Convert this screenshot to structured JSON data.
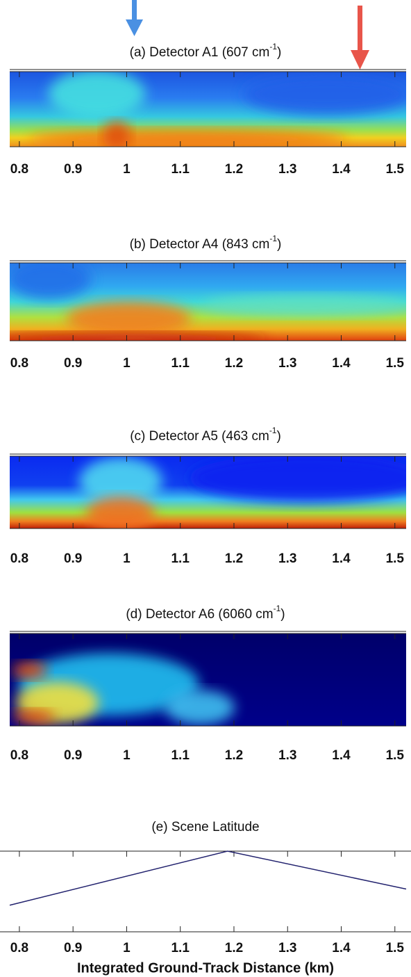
{
  "chart_data": [
    {
      "type": "heatmap",
      "title": "(a) Detector A1 (607 cm",
      "title_superscript": "-1",
      "title_suffix": ")",
      "xlim": [
        0.782,
        1.521
      ],
      "xticks": [
        0.8,
        0.9,
        1,
        1.1,
        1.2,
        1.3,
        1.4,
        1.5
      ]
    },
    {
      "type": "heatmap",
      "title": "(b) Detector A4 (843 cm",
      "title_superscript": "-1",
      "title_suffix": ")",
      "xlim": [
        0.782,
        1.521
      ],
      "xticks": [
        0.8,
        0.9,
        1,
        1.1,
        1.2,
        1.3,
        1.4,
        1.5
      ]
    },
    {
      "type": "heatmap",
      "title": "(c) Detector A5 (463 cm",
      "title_superscript": "-1",
      "title_suffix": ")",
      "xlim": [
        0.782,
        1.521
      ],
      "xticks": [
        0.8,
        0.9,
        1,
        1.1,
        1.2,
        1.3,
        1.4,
        1.5
      ]
    },
    {
      "type": "heatmap",
      "title": "(d) Detector A6 (6060 cm",
      "title_superscript": "-1",
      "title_suffix": ")",
      "xlim": [
        0.782,
        1.521
      ],
      "xticks": [
        0.8,
        0.9,
        1,
        1.1,
        1.2,
        1.3,
        1.4,
        1.5
      ]
    },
    {
      "type": "line",
      "title": "(e) Scene Latitude",
      "x": [
        0.782,
        1.188,
        1.521
      ],
      "values": [
        0.33,
        1,
        0.53
      ],
      "ylim": [
        0,
        1
      ],
      "color": "#22226e",
      "xlim": [
        0.782,
        1.521
      ],
      "xticks": [
        0.8,
        0.9,
        1,
        1.1,
        1.2,
        1.3,
        1.4,
        1.5
      ],
      "xlabel": "Integrated Ground-Track Distance (km)"
    }
  ]
}
